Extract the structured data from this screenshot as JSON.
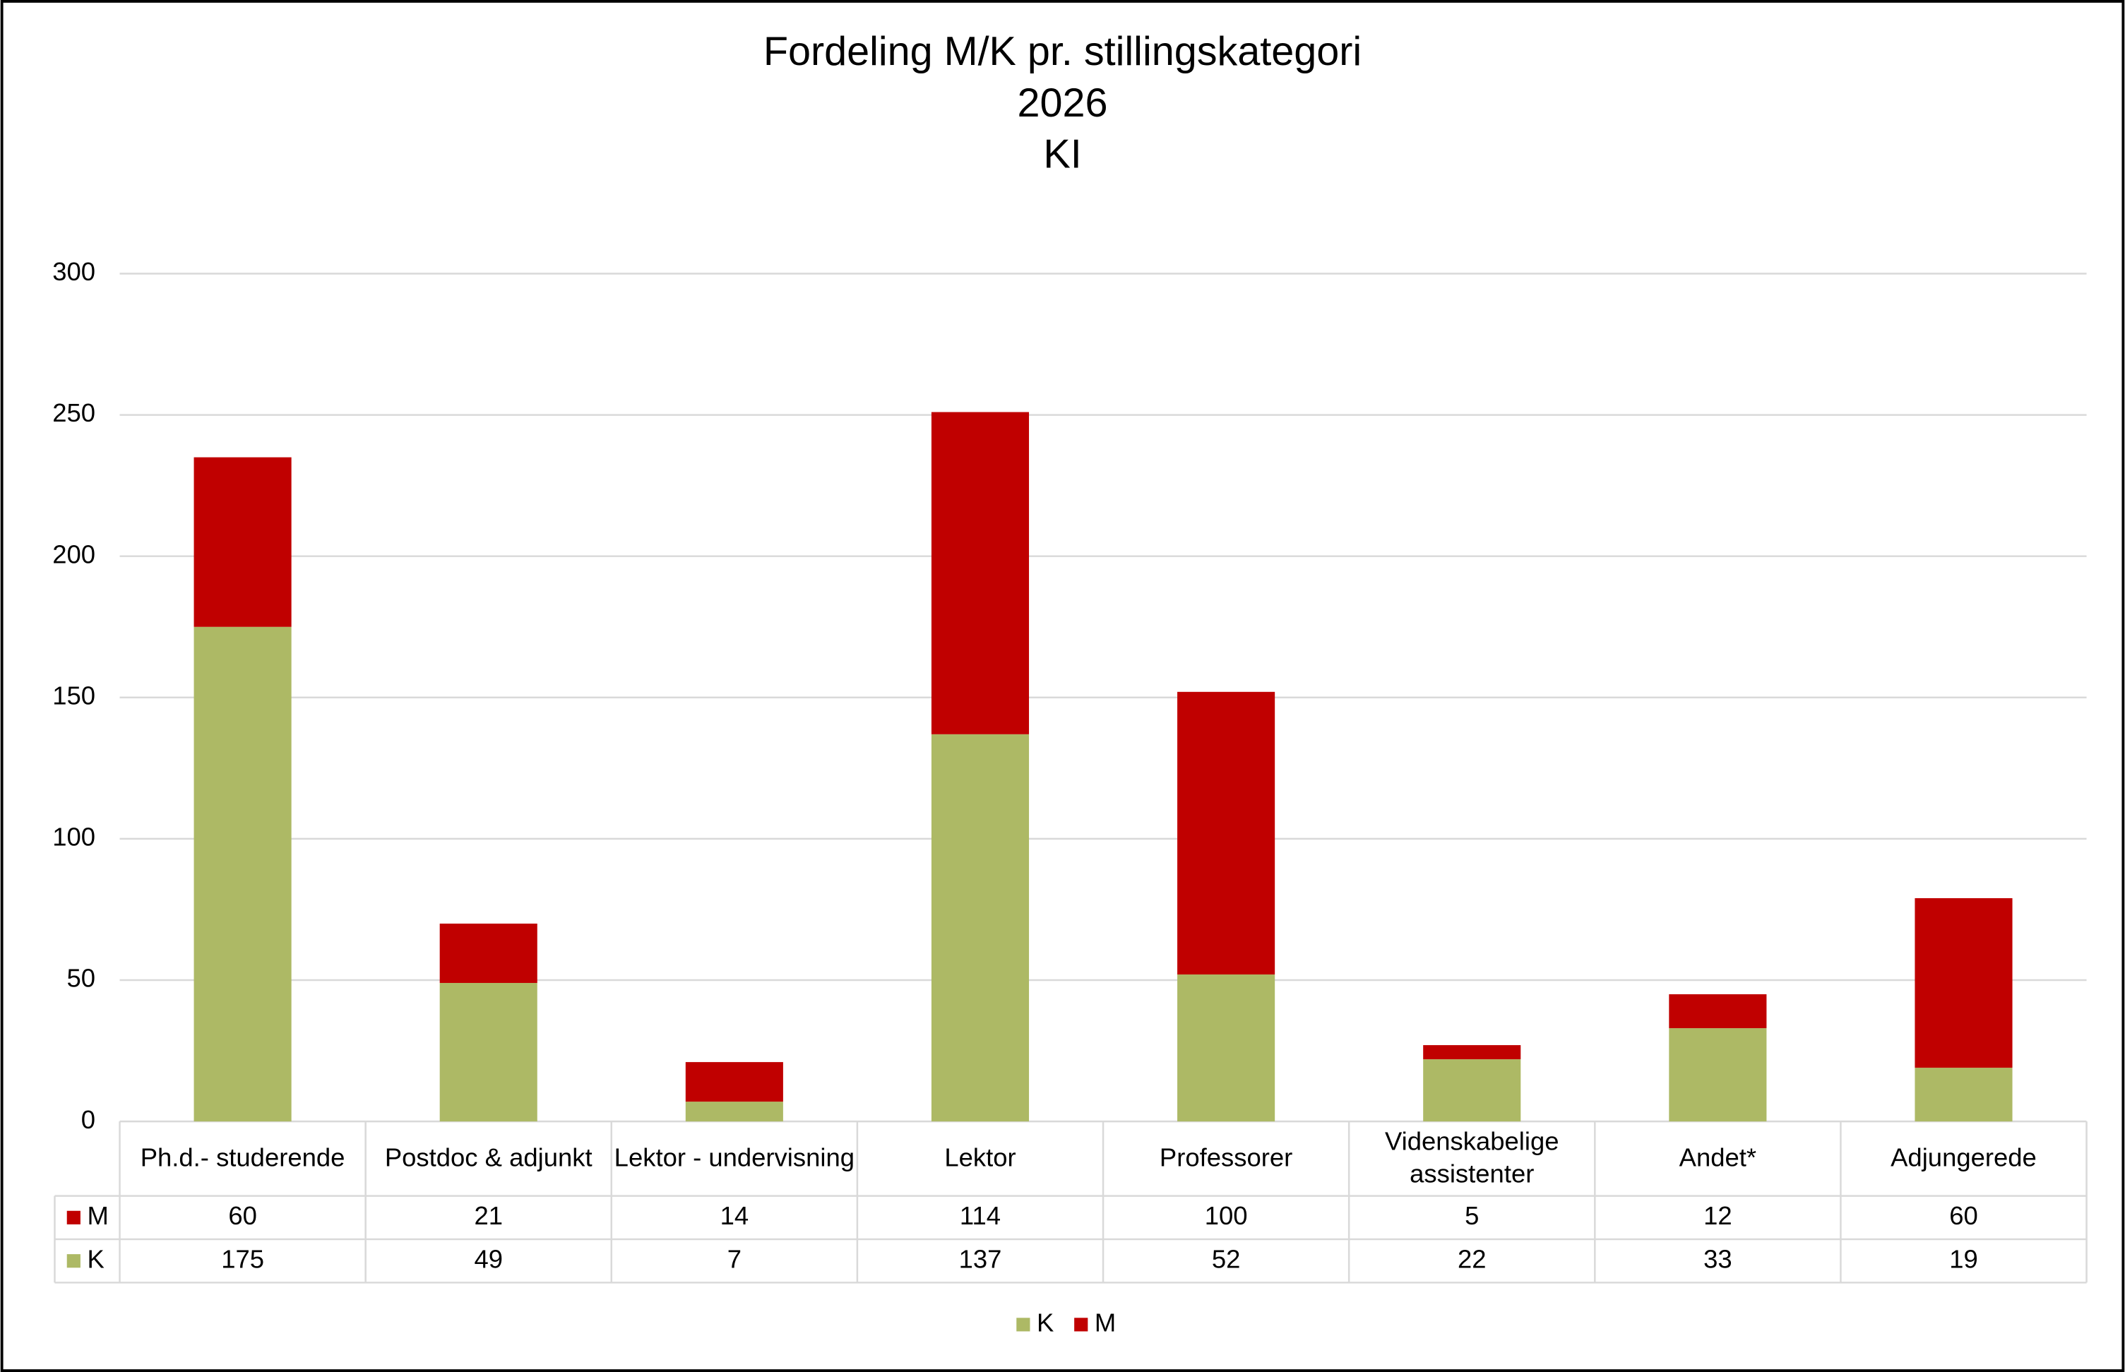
{
  "chart_data": {
    "type": "stacked_bar",
    "title": [
      "Fordeling M/K pr. stillingskategori",
      "2026",
      "KI"
    ],
    "categories": [
      "Ph.d.- studerende",
      "Postdoc & adjunkt",
      "Lektor - undervisning",
      "Lektor",
      "Professorer",
      "Videnskabelige assistenter",
      "Andet*",
      "Adjungerede"
    ],
    "series": [
      {
        "name": "K",
        "color": "#adb965",
        "values": [
          175,
          49,
          7,
          137,
          52,
          22,
          33,
          19
        ]
      },
      {
        "name": "M",
        "color": "#c00000",
        "values": [
          60,
          21,
          14,
          114,
          100,
          5,
          12,
          60
        ]
      }
    ],
    "ylim": [
      0,
      300
    ],
    "yticks": [
      0,
      50,
      100,
      150,
      200,
      250,
      300
    ],
    "grid": true,
    "data_table": true,
    "legend": "bottom"
  }
}
